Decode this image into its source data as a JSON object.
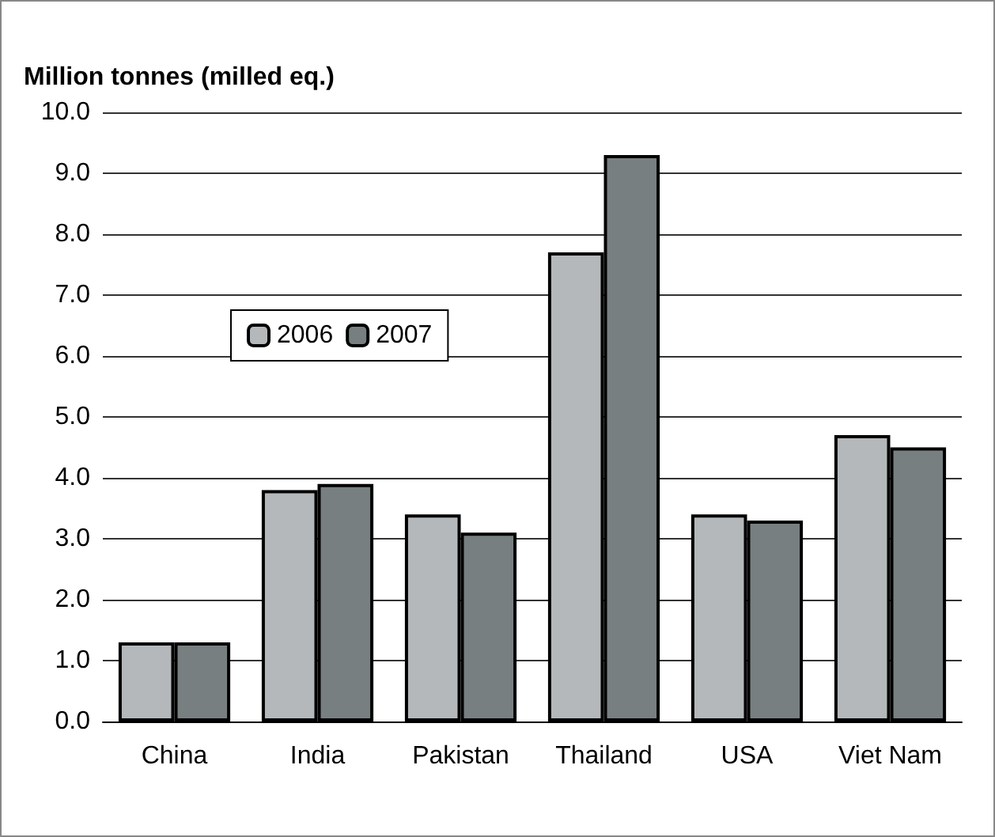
{
  "chart_data": {
    "type": "bar",
    "ylabel": "Million tonnes (milled eq.)",
    "categories": [
      "China",
      "India",
      "Pakistan",
      "Thailand",
      "USA",
      "Viet Nam"
    ],
    "series": [
      {
        "name": "2006",
        "color": "#b5b8ba",
        "values": [
          1.3,
          3.8,
          3.4,
          7.7,
          3.4,
          4.7
        ]
      },
      {
        "name": "2007",
        "color": "#787f80",
        "values": [
          1.3,
          3.9,
          3.1,
          9.3,
          3.3,
          4.5
        ]
      }
    ],
    "ylim": [
      0,
      10
    ],
    "yticks": [
      {
        "value": 0,
        "label": "0.0"
      },
      {
        "value": 1,
        "label": "1.0"
      },
      {
        "value": 2,
        "label": "2.0"
      },
      {
        "value": 3,
        "label": "3.0"
      },
      {
        "value": 4,
        "label": "4.0"
      },
      {
        "value": 5,
        "label": "5.0"
      },
      {
        "value": 6,
        "label": "6.0"
      },
      {
        "value": 7,
        "label": "7.0"
      },
      {
        "value": 8,
        "label": "8.0"
      },
      {
        "value": 9,
        "label": "9.0"
      },
      {
        "value": 10,
        "label": "10.0"
      }
    ],
    "grid": "y",
    "legend": "left"
  }
}
